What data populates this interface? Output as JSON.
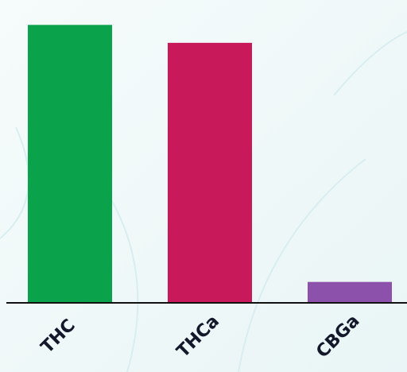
{
  "chart_data": {
    "type": "bar",
    "categories": [
      "THC",
      "THCa",
      "CBGa"
    ],
    "values": [
      93,
      87,
      7
    ],
    "colors": [
      "#0ba24c",
      "#c81a5b",
      "#8c52ab"
    ],
    "ylim": [
      0,
      100
    ]
  }
}
